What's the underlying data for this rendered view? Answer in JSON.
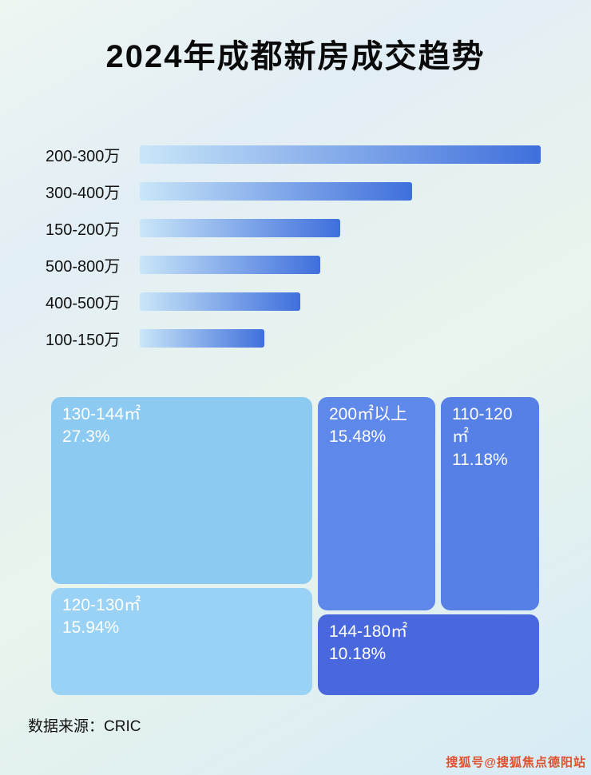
{
  "title": "2024年成都新房成交趋势",
  "source": "数据来源：CRIC",
  "watermark": "搜狐号@搜狐焦点德阳站",
  "colors": {
    "bar_gradient_start": "#c9e6f8",
    "bar_gradient_end": "#3f6fdc",
    "watermark_color": "#e0512d"
  },
  "chart_data": [
    {
      "type": "bar",
      "orientation": "horizontal",
      "title": "2024年成都新房成交趋势",
      "categories": [
        "200-300万",
        "300-400万",
        "150-200万",
        "500-800万",
        "400-500万",
        "100-150万"
      ],
      "values": [
        100,
        68,
        50,
        45,
        40,
        31
      ],
      "value_note": "bar lengths relative to longest bar (%), no numeric axis shown",
      "bar_gradient": [
        "#c9e6f8",
        "#3f6fdc"
      ],
      "grid": false,
      "legend": false
    },
    {
      "type": "treemap",
      "items": [
        {
          "label": "130-144㎡",
          "percent": "27.3%",
          "value": 27.3,
          "color": "#8ccaf2"
        },
        {
          "label": "200㎡以上",
          "percent": "15.48%",
          "value": 15.48,
          "color": "#5e88e9"
        },
        {
          "label": "110-120㎡",
          "percent": "11.18%",
          "value": 11.18,
          "color": "#5680e6"
        },
        {
          "label": "120-130㎡",
          "percent": "15.94%",
          "value": 15.94,
          "color": "#9ad2f5"
        },
        {
          "label": "144-180㎡",
          "percent": "10.18%",
          "value": 10.18,
          "color": "#4a68de"
        }
      ]
    }
  ]
}
